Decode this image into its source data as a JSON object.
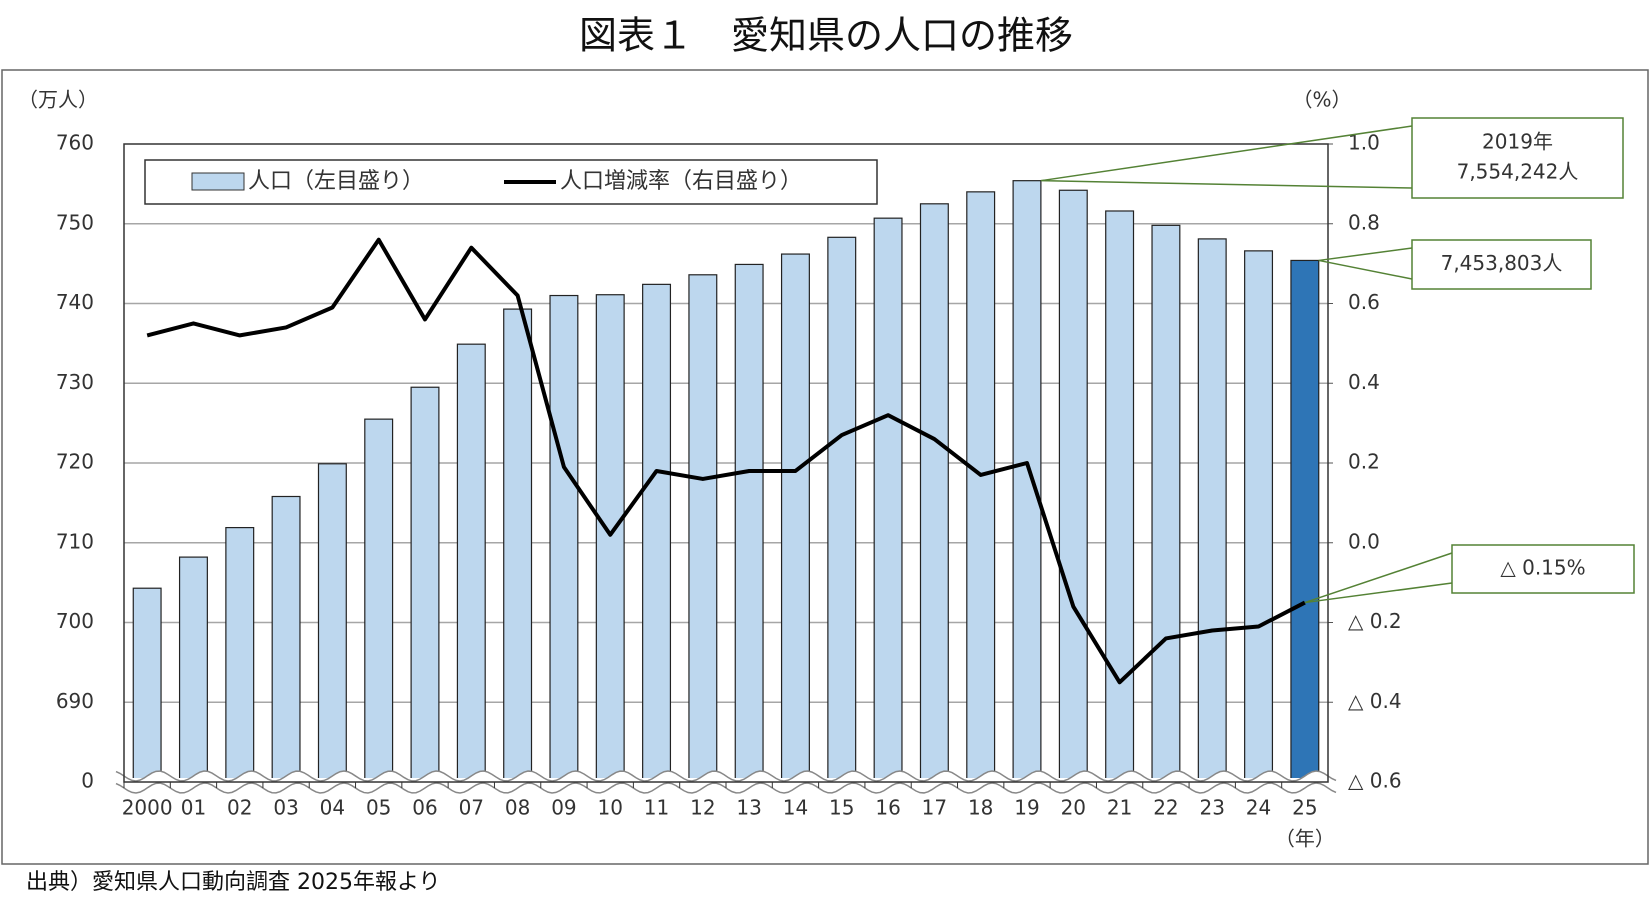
{
  "chart_data": {
    "type": "bar_line",
    "title": "図表１　愛知県の人口の推移",
    "y_label": "（万人）",
    "y2_label": "（%）",
    "x_label": "（年）",
    "source": "出典）愛知県人口動向調査 2025年報より",
    "categories": [
      "2000",
      "01",
      "02",
      "03",
      "04",
      "05",
      "06",
      "07",
      "08",
      "09",
      "10",
      "11",
      "12",
      "13",
      "14",
      "15",
      "16",
      "17",
      "18",
      "19",
      "20",
      "21",
      "22",
      "23",
      "24",
      "25"
    ],
    "series": [
      {
        "name": "人口（左目盛り）",
        "type": "bar",
        "color": "#bdd7ee",
        "bar_colors": [
          "#bdd7ee",
          "#bdd7ee",
          "#bdd7ee",
          "#bdd7ee",
          "#bdd7ee",
          "#bdd7ee",
          "#bdd7ee",
          "#bdd7ee",
          "#bdd7ee",
          "#bdd7ee",
          "#bdd7ee",
          "#bdd7ee",
          "#bdd7ee",
          "#bdd7ee",
          "#bdd7ee",
          "#bdd7ee",
          "#bdd7ee",
          "#bdd7ee",
          "#bdd7ee",
          "#bdd7ee",
          "#bdd7ee",
          "#bdd7ee",
          "#bdd7ee",
          "#bdd7ee",
          "#bdd7ee",
          "#2e75b6"
        ],
        "values": [
          704.3,
          708.2,
          711.9,
          715.8,
          719.9,
          725.5,
          729.5,
          734.9,
          739.3,
          741.0,
          741.1,
          742.4,
          743.6,
          744.9,
          746.2,
          748.3,
          750.7,
          752.5,
          754.0,
          755.4,
          754.2,
          751.6,
          749.8,
          748.1,
          746.6,
          745.4
        ]
      },
      {
        "name": "人口増減率（右目盛り）",
        "type": "line",
        "color": "#000000",
        "axis": "y2",
        "values": [
          0.52,
          0.55,
          0.52,
          0.54,
          0.59,
          0.76,
          0.56,
          0.74,
          0.62,
          0.19,
          0.02,
          0.18,
          0.16,
          0.18,
          0.18,
          0.27,
          0.32,
          0.26,
          0.17,
          0.2,
          -0.16,
          -0.35,
          -0.24,
          -0.22,
          -0.21,
          -0.15
        ]
      }
    ],
    "ylim": [
      0,
      760
    ],
    "ybreak": [
      0,
      680
    ],
    "yticks": [
      0,
      690,
      700,
      710,
      720,
      730,
      740,
      750,
      760
    ],
    "y2lim": [
      -0.6,
      1.0
    ],
    "y2ticks": [
      {
        "value": -0.6,
        "label": "△ 0.6"
      },
      {
        "value": -0.4,
        "label": "△ 0.4"
      },
      {
        "value": -0.2,
        "label": "△ 0.2"
      },
      {
        "value": 0.0,
        "label": "0.0"
      },
      {
        "value": 0.2,
        "label": "0.2"
      },
      {
        "value": 0.4,
        "label": "0.4"
      },
      {
        "value": 0.6,
        "label": "0.6"
      },
      {
        "value": 0.8,
        "label": "0.8"
      },
      {
        "value": 1.0,
        "label": "1.0"
      }
    ],
    "grid": true,
    "annotations": [
      {
        "text": [
          "2019年",
          "7,554,242人"
        ]
      },
      {
        "text": [
          "7,453,803人"
        ]
      },
      {
        "text": [
          "△ 0.15%"
        ]
      }
    ]
  }
}
